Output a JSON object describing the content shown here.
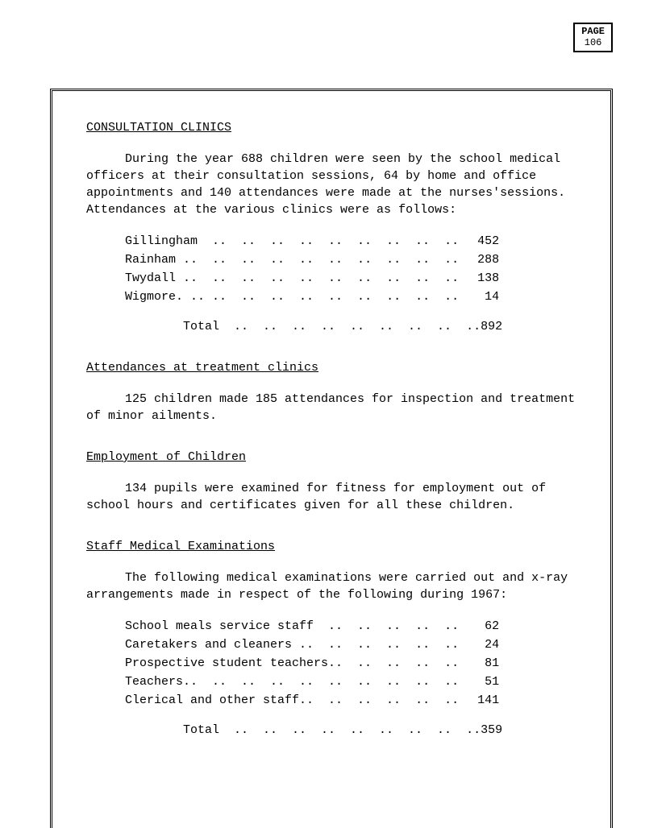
{
  "page_label": "PAGE",
  "page_number": "106",
  "sections": {
    "consultation": {
      "heading": "CONSULTATION CLINICS",
      "intro": "During the year 688 children were seen by the school medical officers at their consultation sessions, 64 by home and office appointments and 140 attendances were made at the nurses'sessions. Attendances at the various clinics were as follows:",
      "items": [
        {
          "label": "Gillingham",
          "dots": "  ..  ..  ..  ..  ..  ..  ..  ..  ..",
          "value": "452"
        },
        {
          "label": "Rainham .. ",
          "dots": " ..  ..  ..  ..  ..  ..  ..  ..  ..",
          "value": "288"
        },
        {
          "label": "Twydall .. ",
          "dots": " ..  ..  ..  ..  ..  ..  ..  ..  ..",
          "value": "138"
        },
        {
          "label": "Wigmore. ..",
          "dots": " ..  ..  ..  ..  ..  ..  ..  ..  ..",
          "value": " 14"
        }
      ],
      "total_label": "Total",
      "total_dots": "  ..  ..  ..  ..  ..  ..  ..  ..  ..",
      "total_value": "892"
    },
    "attendances": {
      "heading": "Attendances at treatment clinics",
      "text": "125 children made 185 attendances for inspection and treatment of minor ailments."
    },
    "employment": {
      "heading": "Employment of Children",
      "text": "134 pupils were examined for fitness for employment out of school hours and certificates given for all these children."
    },
    "staff_medical": {
      "heading": "Staff Medical Examinations",
      "intro": "The following medical examinations were carried out and x-ray arrangements made in respect of the following during 1967:",
      "items": [
        {
          "label": "School meals service staff  ",
          "dots": "..  ..  ..  ..  ..",
          "value": " 62"
        },
        {
          "label": "Caretakers and cleaners ..  ",
          "dots": "..  ..  ..  ..  ..",
          "value": " 24"
        },
        {
          "label": "Prospective student teachers",
          "dots": "..  ..  ..  ..  ..",
          "value": " 81"
        },
        {
          "label": "Teachers..  ..  ..  ..  ..  ",
          "dots": "..  ..  ..  ..  ..",
          "value": " 51"
        },
        {
          "label": "Clerical and other staff..  ",
          "dots": "..  ..  ..  ..  ..",
          "value": "141"
        }
      ],
      "total_label": "Total",
      "total_dots": "  ..  ..  ..  ..  ..  ..  ..  ..  ..",
      "total_value": "359"
    }
  }
}
